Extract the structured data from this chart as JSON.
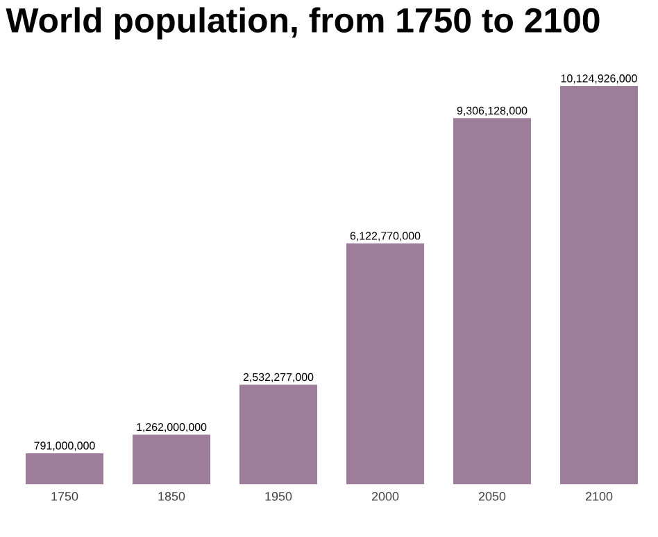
{
  "chart_data": {
    "type": "bar",
    "title": "World population, from 1750 to 2100",
    "categories": [
      "1750",
      "1850",
      "1950",
      "2000",
      "2050",
      "2100"
    ],
    "values": [
      791000000,
      1262000000,
      2532277000,
      6122770000,
      9306128000,
      10124926000
    ],
    "value_labels": [
      "791,000,000",
      "1,262,000,000",
      "2,532,277,000",
      "6,122,770,000",
      "9,306,128,000",
      "10,124,926,000"
    ],
    "color": "#9e7d9b"
  }
}
